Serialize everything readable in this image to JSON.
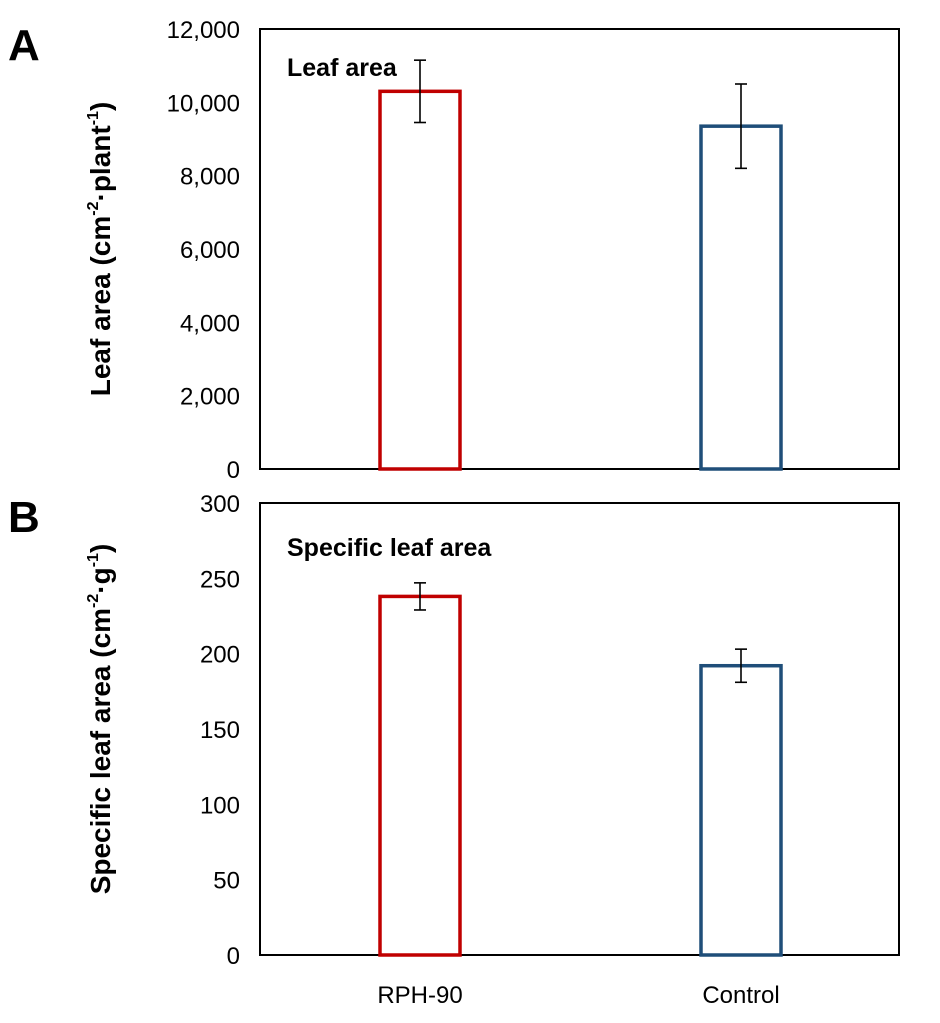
{
  "chart_data": [
    {
      "type": "bar",
      "panel_label": "A",
      "title": "Leaf area",
      "xlabel": "",
      "ylabel": "Leaf area (cm",
      "ylabel_sup1": "-2",
      "ylabel_mid": "·plant",
      "ylabel_sup2": "-1",
      "ylabel_end": ")",
      "ylim": [
        0,
        12000
      ],
      "yticks": [
        0,
        2000,
        4000,
        6000,
        8000,
        10000,
        12000
      ],
      "ytick_labels": [
        "0",
        "2,000",
        "4,000",
        "6,000",
        "8,000",
        "10,000",
        "12,000"
      ],
      "categories": [
        "RPH-90",
        "Control"
      ],
      "show_category_labels": false,
      "values": [
        10300,
        9350
      ],
      "errors": [
        850,
        1150
      ],
      "colors": [
        "#c00000",
        "#1f4e79"
      ],
      "grid": false
    },
    {
      "type": "bar",
      "panel_label": "B",
      "title": "Specific leaf area",
      "xlabel": "",
      "ylabel": "Specific leaf area (cm",
      "ylabel_sup1": "-2",
      "ylabel_mid": "·g",
      "ylabel_sup2": "-1",
      "ylabel_end": ")",
      "ylim": [
        0,
        300
      ],
      "yticks": [
        0,
        50,
        100,
        150,
        200,
        250,
        300
      ],
      "ytick_labels": [
        "0",
        "50",
        "100",
        "150",
        "200",
        "250",
        "300"
      ],
      "categories": [
        "RPH-90",
        "Control"
      ],
      "show_category_labels": true,
      "values": [
        238,
        192
      ],
      "errors": [
        9,
        11
      ],
      "colors": [
        "#c00000",
        "#1f4e79"
      ],
      "grid": false
    }
  ]
}
